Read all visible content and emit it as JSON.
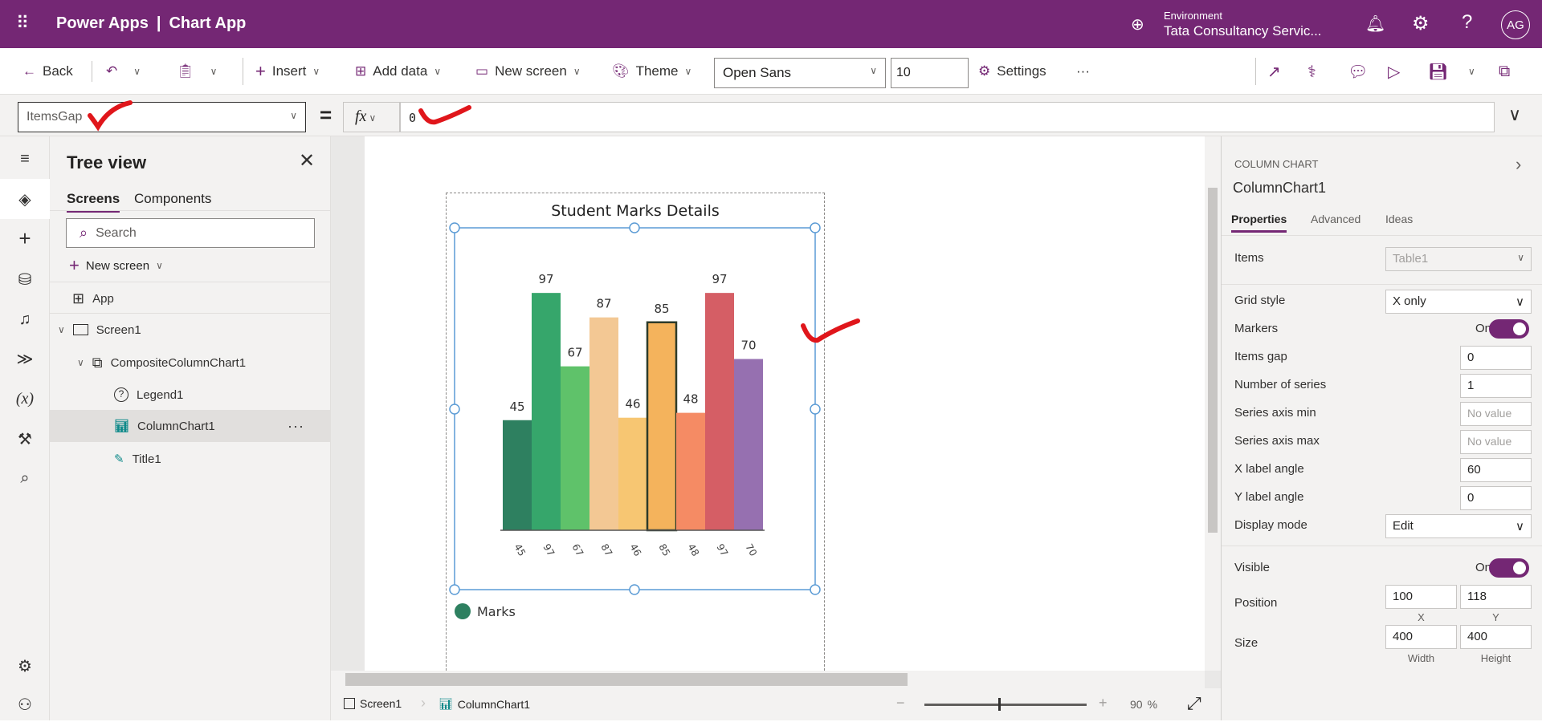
{
  "header": {
    "app": "Power Apps",
    "separator": "|",
    "title": "Chart App",
    "env_label": "Environment",
    "env_name": "Tata Consultancy Servic...",
    "avatar": "AG",
    "brand_color": "#742774"
  },
  "toolbar": {
    "back": "Back",
    "insert": "Insert",
    "add_data": "Add data",
    "new_screen": "New screen",
    "theme": "Theme",
    "font": "Open Sans",
    "font_size": "10",
    "settings": "Settings",
    "more": "···"
  },
  "formula": {
    "property": "ItemsGap",
    "equals": "=",
    "fx": "fx",
    "value": "0"
  },
  "tree": {
    "title": "Tree view",
    "tabs": [
      "Screens",
      "Components"
    ],
    "search_placeholder": "Search",
    "new_screen": "New screen",
    "items": [
      {
        "label": "App"
      },
      {
        "label": "Screen1"
      },
      {
        "label": "CompositeColumnChart1"
      },
      {
        "label": "Legend1"
      },
      {
        "label": "ColumnChart1",
        "selected": true
      },
      {
        "label": "Title1"
      }
    ],
    "more": "···"
  },
  "chart_data": {
    "type": "bar",
    "title": "Student Marks Details",
    "categories": [
      "45",
      "97",
      "67",
      "87",
      "46",
      "85",
      "48",
      "97",
      "70"
    ],
    "values": [
      45,
      97,
      67,
      87,
      46,
      85,
      48,
      97,
      70
    ],
    "colors": [
      "#2e8060",
      "#36a66b",
      "#5fc26a",
      "#f3c894",
      "#f7c672",
      "#f4b35c",
      "#f58b64",
      "#d55e65",
      "#9670b0"
    ],
    "ylim": [
      0,
      100
    ],
    "x_label_angle": 60,
    "grid": false,
    "legend": {
      "position": "bottom-left",
      "entries": [
        {
          "name": "Marks",
          "color": "#2e8060"
        }
      ]
    }
  },
  "props": {
    "type": "COLUMN CHART",
    "name": "ColumnChart1",
    "tabs": [
      "Properties",
      "Advanced",
      "Ideas"
    ],
    "items_label": "Items",
    "items_value": "Table1",
    "grid_label": "Grid style",
    "grid_value": "X only",
    "markers_label": "Markers",
    "on": "On",
    "gap_label": "Items gap",
    "gap_value": "0",
    "series_label": "Number of series",
    "series_value": "1",
    "min_label": "Series axis min",
    "max_label": "Series axis max",
    "no_value": "No value",
    "xangle_label": "X label angle",
    "xangle_value": "60",
    "yangle_label": "Y label angle",
    "yangle_value": "0",
    "display_label": "Display mode",
    "display_value": "Edit",
    "visible_label": "Visible",
    "position_label": "Position",
    "pos_x": "100",
    "pos_y": "118",
    "x": "X",
    "y": "Y",
    "size_label": "Size",
    "width": "400",
    "height": "400",
    "width_label": "Width",
    "height_label": "Height"
  },
  "status": {
    "screen": "Screen1",
    "control": "ColumnChart1",
    "zoom": "90",
    "percent": "%",
    "zoom_level_percent": 90
  }
}
